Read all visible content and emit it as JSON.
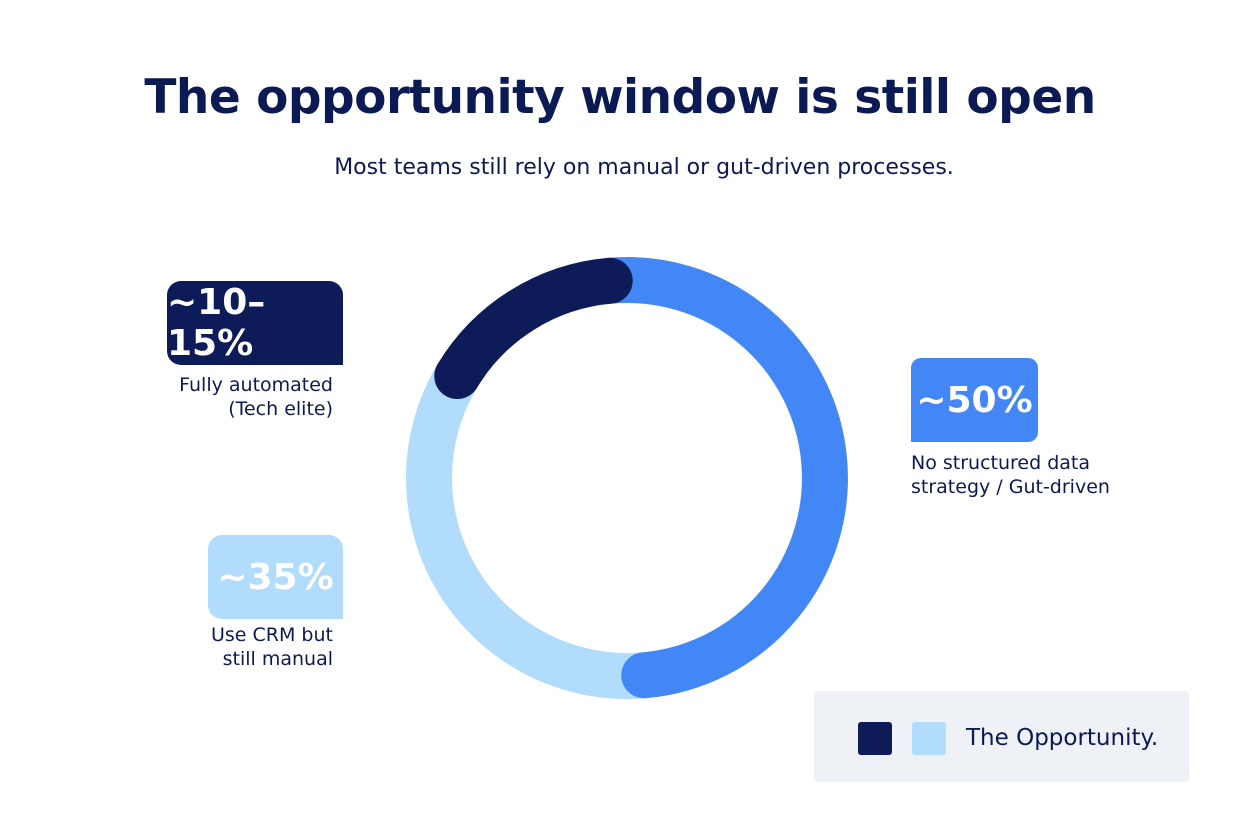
{
  "chart_data": {
    "type": "pie",
    "title": "The opportunity window is still open",
    "subtitle": "Most teams still rely on manual or gut-driven processes.",
    "slices": [
      {
        "label": "~50%",
        "description_lines": [
          "No structured data",
          "strategy / Gut-driven"
        ],
        "value": 50,
        "color": "#4287f5"
      },
      {
        "label": "~35%",
        "description_lines": [
          "Use CRM but",
          "still manual"
        ],
        "value": 35,
        "color": "#b1dcfc"
      },
      {
        "label": "~10–15%",
        "description_lines": [
          "Fully automated",
          "(Tech elite)"
        ],
        "value": 15,
        "color": "#0d1b59"
      }
    ],
    "legend": {
      "label": "The Opportunity.",
      "swatches": [
        "#0d1b59",
        "#b1dcfc"
      ],
      "position": "bottom-right"
    }
  }
}
